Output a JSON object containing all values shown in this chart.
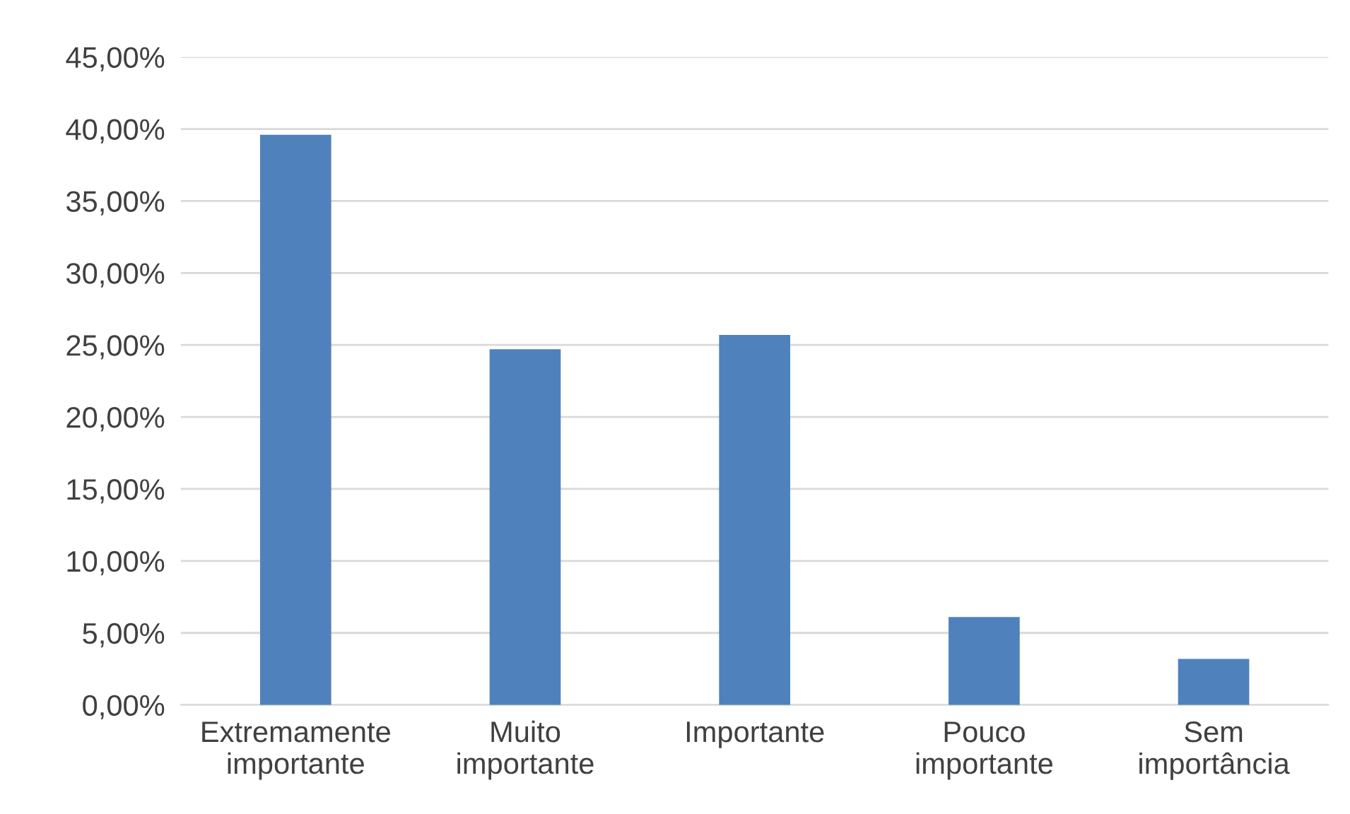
{
  "chart_data": {
    "type": "bar",
    "categories": [
      "Extremamente\nimportante",
      "Muito\nimportante",
      "Importante",
      "Pouco\nimportante",
      "Sem\nimportância"
    ],
    "values": [
      39.6,
      24.7,
      25.7,
      6.1,
      3.2
    ],
    "color": "#4f81bd",
    "ylim": [
      0,
      45
    ],
    "yticks": [
      {
        "value": 0,
        "label": "0,00%"
      },
      {
        "value": 5,
        "label": "5,00%"
      },
      {
        "value": 10,
        "label": "10,00%"
      },
      {
        "value": 15,
        "label": "15,00%"
      },
      {
        "value": 20,
        "label": "20,00%"
      },
      {
        "value": 25,
        "label": "25,00%"
      },
      {
        "value": 30,
        "label": "30,00%"
      },
      {
        "value": 35,
        "label": "35,00%"
      },
      {
        "value": 40,
        "label": "40,00%"
      },
      {
        "value": 45,
        "label": "45,00%"
      }
    ],
    "grid": "y"
  }
}
